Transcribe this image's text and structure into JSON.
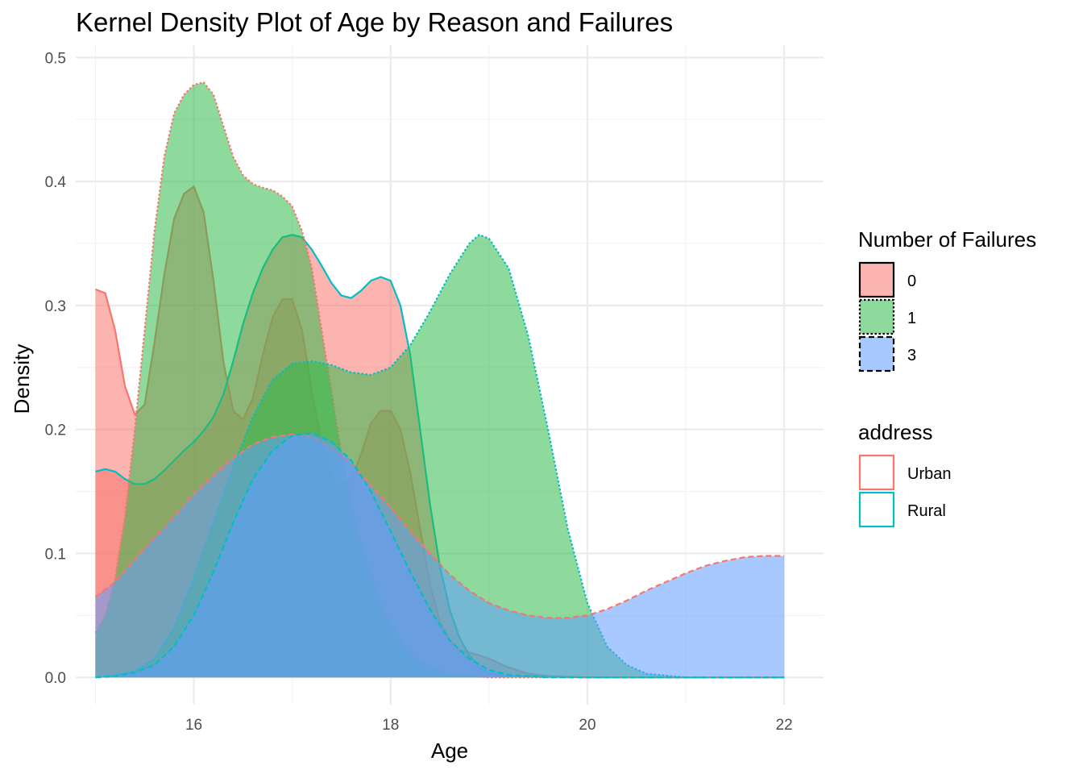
{
  "chart_data": {
    "type": "area",
    "title": "Kernel Density Plot of Age by Reason and Failures",
    "xlabel": "Age",
    "ylabel": "Density",
    "xlim": [
      14.8,
      22.4
    ],
    "ylim": [
      -0.022,
      0.51
    ],
    "x_ticks": [
      16,
      18,
      20,
      22
    ],
    "y_ticks": [
      0.0,
      0.1,
      0.2,
      0.3,
      0.4,
      0.5
    ],
    "y_tick_labels": [
      "0.0",
      "0.1",
      "0.2",
      "0.3",
      "0.4",
      "0.5"
    ],
    "grid": true,
    "fill_alpha": 0.55,
    "fill_legend": {
      "title": "Number of Failures",
      "entries": [
        {
          "label": "0",
          "fill": "#F8766D",
          "linetype": "solid"
        },
        {
          "label": "1",
          "fill": "#31B94B",
          "linetype": "dotted"
        },
        {
          "label": "3",
          "fill": "#619CFF",
          "linetype": "dashed"
        }
      ]
    },
    "color_legend": {
      "title": "address",
      "entries": [
        {
          "label": "Urban",
          "color": "#F8766D"
        },
        {
          "label": "Rural",
          "color": "#00BFC4"
        }
      ]
    },
    "legend_position": "right",
    "series": [
      {
        "failures": "0",
        "address": "Urban",
        "fill": "#F8766D",
        "stroke": "#F8766D",
        "dash": "solid",
        "points": [
          [
            15,
            0.313
          ],
          [
            15.1,
            0.31
          ],
          [
            15.2,
            0.28
          ],
          [
            15.3,
            0.235
          ],
          [
            15.4,
            0.212
          ],
          [
            15.5,
            0.22
          ],
          [
            15.6,
            0.27
          ],
          [
            15.7,
            0.325
          ],
          [
            15.8,
            0.37
          ],
          [
            15.9,
            0.39
          ],
          [
            16,
            0.396
          ],
          [
            16.1,
            0.375
          ],
          [
            16.2,
            0.32
          ],
          [
            16.3,
            0.255
          ],
          [
            16.4,
            0.215
          ],
          [
            16.5,
            0.208
          ],
          [
            16.6,
            0.225
          ],
          [
            16.7,
            0.26
          ],
          [
            16.8,
            0.29
          ],
          [
            16.9,
            0.305
          ],
          [
            17,
            0.305
          ],
          [
            17.1,
            0.28
          ],
          [
            17.2,
            0.23
          ],
          [
            17.3,
            0.19
          ],
          [
            17.4,
            0.162
          ],
          [
            17.5,
            0.155
          ],
          [
            17.6,
            0.16
          ],
          [
            17.7,
            0.18
          ],
          [
            17.8,
            0.205
          ],
          [
            17.9,
            0.215
          ],
          [
            18,
            0.215
          ],
          [
            18.1,
            0.2
          ],
          [
            18.2,
            0.165
          ],
          [
            18.3,
            0.12
          ],
          [
            18.4,
            0.075
          ],
          [
            18.5,
            0.045
          ],
          [
            18.6,
            0.03
          ],
          [
            18.7,
            0.022
          ],
          [
            18.8,
            0.02
          ],
          [
            18.9,
            0.018
          ],
          [
            19,
            0.015
          ],
          [
            19.2,
            0.008
          ],
          [
            19.4,
            0.003
          ],
          [
            19.6,
            0.001
          ],
          [
            20,
            0
          ],
          [
            22,
            0
          ]
        ]
      },
      {
        "failures": "0",
        "address": "Rural",
        "fill": "#F8766D",
        "stroke": "#00BFC4",
        "dash": "solid",
        "points": [
          [
            15,
            0.166
          ],
          [
            15.1,
            0.168
          ],
          [
            15.2,
            0.166
          ],
          [
            15.3,
            0.16
          ],
          [
            15.4,
            0.156
          ],
          [
            15.5,
            0.156
          ],
          [
            15.6,
            0.16
          ],
          [
            15.7,
            0.167
          ],
          [
            15.8,
            0.175
          ],
          [
            15.9,
            0.183
          ],
          [
            16,
            0.19
          ],
          [
            16.1,
            0.199
          ],
          [
            16.2,
            0.21
          ],
          [
            16.3,
            0.228
          ],
          [
            16.4,
            0.255
          ],
          [
            16.5,
            0.285
          ],
          [
            16.6,
            0.31
          ],
          [
            16.7,
            0.33
          ],
          [
            16.8,
            0.345
          ],
          [
            16.9,
            0.355
          ],
          [
            17,
            0.357
          ],
          [
            17.1,
            0.355
          ],
          [
            17.2,
            0.345
          ],
          [
            17.3,
            0.332
          ],
          [
            17.4,
            0.318
          ],
          [
            17.5,
            0.308
          ],
          [
            17.6,
            0.306
          ],
          [
            17.7,
            0.312
          ],
          [
            17.8,
            0.32
          ],
          [
            17.9,
            0.323
          ],
          [
            18,
            0.32
          ],
          [
            18.1,
            0.3
          ],
          [
            18.2,
            0.26
          ],
          [
            18.3,
            0.2
          ],
          [
            18.4,
            0.14
          ],
          [
            18.5,
            0.09
          ],
          [
            18.6,
            0.055
          ],
          [
            18.7,
            0.032
          ],
          [
            18.8,
            0.018
          ],
          [
            18.9,
            0.008
          ],
          [
            19,
            0.003
          ],
          [
            19.2,
            0.001
          ],
          [
            20,
            0
          ],
          [
            22,
            0
          ]
        ]
      },
      {
        "failures": "1",
        "address": "Urban",
        "fill": "#31B94B",
        "stroke": "#F8766D",
        "dash": "dotted",
        "points": [
          [
            15,
            0.036
          ],
          [
            15.1,
            0.05
          ],
          [
            15.2,
            0.08
          ],
          [
            15.3,
            0.13
          ],
          [
            15.4,
            0.2
          ],
          [
            15.5,
            0.28
          ],
          [
            15.6,
            0.36
          ],
          [
            15.7,
            0.42
          ],
          [
            15.8,
            0.455
          ],
          [
            15.9,
            0.47
          ],
          [
            16,
            0.478
          ],
          [
            16.1,
            0.48
          ],
          [
            16.2,
            0.47
          ],
          [
            16.3,
            0.445
          ],
          [
            16.4,
            0.42
          ],
          [
            16.5,
            0.405
          ],
          [
            16.6,
            0.398
          ],
          [
            16.7,
            0.395
          ],
          [
            16.8,
            0.393
          ],
          [
            16.9,
            0.388
          ],
          [
            17,
            0.38
          ],
          [
            17.1,
            0.36
          ],
          [
            17.2,
            0.33
          ],
          [
            17.3,
            0.28
          ],
          [
            17.4,
            0.23
          ],
          [
            17.5,
            0.18
          ],
          [
            17.6,
            0.14
          ],
          [
            17.7,
            0.11
          ],
          [
            17.8,
            0.085
          ],
          [
            17.9,
            0.06
          ],
          [
            18,
            0.045
          ],
          [
            18.1,
            0.03
          ],
          [
            18.2,
            0.02
          ],
          [
            18.4,
            0.008
          ],
          [
            18.6,
            0.003
          ],
          [
            19,
            0
          ],
          [
            22,
            0
          ]
        ]
      },
      {
        "failures": "1",
        "address": "Rural",
        "fill": "#31B94B",
        "stroke": "#00BFC4",
        "dash": "dotted",
        "points": [
          [
            15,
            0
          ],
          [
            15.2,
            0.002
          ],
          [
            15.4,
            0.005
          ],
          [
            15.6,
            0.015
          ],
          [
            15.8,
            0.04
          ],
          [
            16,
            0.08
          ],
          [
            16.2,
            0.125
          ],
          [
            16.4,
            0.17
          ],
          [
            16.6,
            0.21
          ],
          [
            16.8,
            0.24
          ],
          [
            17,
            0.253
          ],
          [
            17.2,
            0.255
          ],
          [
            17.4,
            0.252
          ],
          [
            17.6,
            0.246
          ],
          [
            17.8,
            0.244
          ],
          [
            18,
            0.25
          ],
          [
            18.2,
            0.268
          ],
          [
            18.4,
            0.295
          ],
          [
            18.6,
            0.325
          ],
          [
            18.8,
            0.35
          ],
          [
            18.9,
            0.357
          ],
          [
            19,
            0.354
          ],
          [
            19.2,
            0.33
          ],
          [
            19.4,
            0.275
          ],
          [
            19.6,
            0.2
          ],
          [
            19.8,
            0.12
          ],
          [
            20,
            0.06
          ],
          [
            20.2,
            0.025
          ],
          [
            20.4,
            0.01
          ],
          [
            20.6,
            0.003
          ],
          [
            21,
            0
          ],
          [
            22,
            0
          ]
        ]
      },
      {
        "failures": "3",
        "address": "Urban",
        "fill": "#619CFF",
        "stroke": "#F8766D",
        "dash": "dashed",
        "points": [
          [
            15,
            0.065
          ],
          [
            15.2,
            0.077
          ],
          [
            15.4,
            0.095
          ],
          [
            15.6,
            0.113
          ],
          [
            15.8,
            0.13
          ],
          [
            16,
            0.148
          ],
          [
            16.2,
            0.163
          ],
          [
            16.4,
            0.177
          ],
          [
            16.6,
            0.188
          ],
          [
            16.8,
            0.194
          ],
          [
            17,
            0.196
          ],
          [
            17.2,
            0.194
          ],
          [
            17.4,
            0.185
          ],
          [
            17.6,
            0.172
          ],
          [
            17.8,
            0.155
          ],
          [
            18,
            0.137
          ],
          [
            18.2,
            0.118
          ],
          [
            18.4,
            0.1
          ],
          [
            18.6,
            0.083
          ],
          [
            18.8,
            0.07
          ],
          [
            19,
            0.06
          ],
          [
            19.2,
            0.054
          ],
          [
            19.4,
            0.05
          ],
          [
            19.6,
            0.048
          ],
          [
            19.8,
            0.048
          ],
          [
            20,
            0.05
          ],
          [
            20.2,
            0.055
          ],
          [
            20.4,
            0.062
          ],
          [
            20.6,
            0.07
          ],
          [
            20.8,
            0.077
          ],
          [
            21,
            0.084
          ],
          [
            21.2,
            0.09
          ],
          [
            21.4,
            0.094
          ],
          [
            21.6,
            0.097
          ],
          [
            21.8,
            0.098
          ],
          [
            22,
            0.098
          ]
        ]
      },
      {
        "failures": "3",
        "address": "Rural",
        "fill": "#619CFF",
        "stroke": "#00BFC4",
        "dash": "dashed",
        "points": [
          [
            15,
            0
          ],
          [
            15.2,
            0.001
          ],
          [
            15.4,
            0.004
          ],
          [
            15.6,
            0.01
          ],
          [
            15.8,
            0.025
          ],
          [
            16,
            0.05
          ],
          [
            16.2,
            0.085
          ],
          [
            16.4,
            0.125
          ],
          [
            16.6,
            0.16
          ],
          [
            16.8,
            0.183
          ],
          [
            17,
            0.195
          ],
          [
            17.2,
            0.197
          ],
          [
            17.4,
            0.19
          ],
          [
            17.6,
            0.175
          ],
          [
            17.8,
            0.15
          ],
          [
            18,
            0.118
          ],
          [
            18.2,
            0.085
          ],
          [
            18.4,
            0.055
          ],
          [
            18.6,
            0.03
          ],
          [
            18.8,
            0.015
          ],
          [
            19,
            0.006
          ],
          [
            19.2,
            0.002
          ],
          [
            19.6,
            0
          ],
          [
            22,
            0
          ]
        ]
      }
    ]
  }
}
